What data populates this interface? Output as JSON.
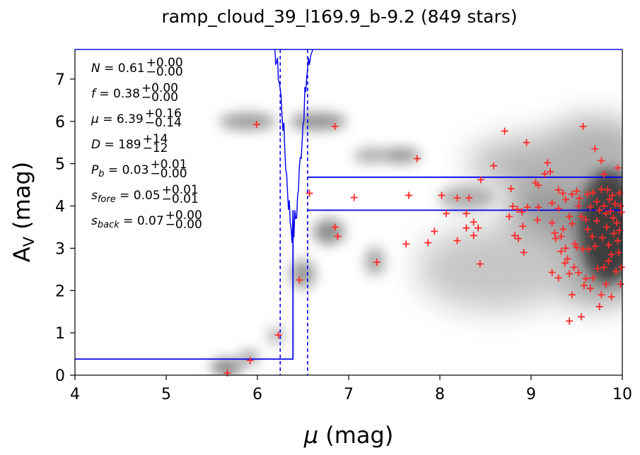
{
  "chart_data": {
    "type": "scatter",
    "title": "ramp_cloud_39_l169.9_b-9.2 (849 stars)",
    "xlabel_symbol": "μ",
    "xlabel_unit": " (mag)",
    "ylabel_main": "A",
    "ylabel_sub": "V",
    "ylabel_unit": " (mag)",
    "xlim": [
      4,
      10
    ],
    "ylim": [
      0,
      7.7
    ],
    "xticks": [
      4,
      5,
      6,
      7,
      8,
      9,
      10
    ],
    "yticks": [
      0,
      1,
      2,
      3,
      4,
      5,
      6,
      7
    ],
    "grid": false,
    "colors": {
      "points": "#ff2a2a",
      "model": "#0000ee",
      "density": "#555555"
    },
    "annotations": [
      {
        "sym": "N",
        "italic": true,
        "sub": "",
        "val": "0.61",
        "up": "+0.00",
        "lo": "−0.00"
      },
      {
        "sym": "f",
        "italic": true,
        "sub": "",
        "val": "0.38",
        "up": "+0.00",
        "lo": "−0.00"
      },
      {
        "sym": "μ",
        "italic": true,
        "sub": "",
        "val": "6.39",
        "up": "+0.16",
        "lo": "−0.14"
      },
      {
        "sym": "D",
        "italic": true,
        "sub": "",
        "val": "189",
        "up": "+14",
        "lo": "−12"
      },
      {
        "sym": "P",
        "italic": true,
        "sub": "b",
        "val": "0.03",
        "up": "+0.01",
        "lo": "−0.00"
      },
      {
        "sym": "s",
        "italic": true,
        "sub": "fore",
        "val": "0.05",
        "up": "+0.01",
        "lo": "−0.01"
      },
      {
        "sym": "s",
        "italic": true,
        "sub": "back",
        "val": "0.07",
        "up": "+0.00",
        "lo": "−0.00"
      }
    ],
    "model_fore_av": 0.38,
    "model_back_av_low": 3.9,
    "model_back_av_high": 4.68,
    "model_mu": 6.39,
    "mu_lower": 6.25,
    "mu_upper": 6.55,
    "points": [
      [
        5.67,
        0.05
      ],
      [
        5.92,
        0.35
      ],
      [
        6.23,
        0.95
      ],
      [
        6.46,
        2.25
      ],
      [
        5.99,
        5.93
      ],
      [
        6.85,
        5.88
      ],
      [
        6.57,
        4.3
      ],
      [
        6.85,
        3.5
      ],
      [
        6.88,
        3.28
      ],
      [
        7.06,
        4.2
      ],
      [
        7.31,
        2.67
      ],
      [
        7.63,
        3.1
      ],
      [
        7.66,
        4.25
      ],
      [
        7.75,
        5.12
      ],
      [
        7.87,
        3.13
      ],
      [
        7.94,
        3.4
      ],
      [
        8.02,
        4.25
      ],
      [
        8.07,
        3.82
      ],
      [
        8.19,
        3.18
      ],
      [
        8.19,
        4.19
      ],
      [
        8.29,
        3.82
      ],
      [
        8.29,
        3.48
      ],
      [
        8.32,
        4.19
      ],
      [
        8.37,
        3.3
      ],
      [
        8.37,
        3.62
      ],
      [
        8.42,
        3.48
      ],
      [
        8.44,
        2.63
      ],
      [
        8.45,
        4.62
      ],
      [
        8.59,
        4.95
      ],
      [
        8.71,
        5.77
      ],
      [
        8.76,
        3.75
      ],
      [
        8.78,
        4.41
      ],
      [
        8.8,
        3.99
      ],
      [
        8.82,
        3.3
      ],
      [
        8.85,
        3.92
      ],
      [
        8.86,
        3.23
      ],
      [
        8.9,
        3.86
      ],
      [
        8.91,
        3.52
      ],
      [
        8.92,
        2.9
      ],
      [
        8.95,
        5.5
      ],
      [
        8.96,
        3.97
      ],
      [
        9.05,
        4.55
      ],
      [
        9.07,
        3.67
      ],
      [
        9.08,
        4.49
      ],
      [
        9.08,
        3.97
      ],
      [
        9.15,
        4.76
      ],
      [
        9.18,
        5.02
      ],
      [
        9.21,
        4.81
      ],
      [
        9.23,
        4.07
      ],
      [
        9.23,
        3.6
      ],
      [
        9.23,
        2.43
      ],
      [
        9.26,
        3.36
      ],
      [
        9.27,
        3.23
      ],
      [
        9.3,
        3.94
      ],
      [
        9.3,
        2.3
      ],
      [
        9.3,
        4.38
      ],
      [
        9.33,
        3.28
      ],
      [
        9.33,
        2.93
      ],
      [
        9.35,
        3.45
      ],
      [
        9.35,
        4.3
      ],
      [
        9.37,
        2.65
      ],
      [
        9.38,
        4.15
      ],
      [
        9.38,
        3.0
      ],
      [
        9.4,
        2.75
      ],
      [
        9.42,
        1.28
      ],
      [
        9.42,
        2.4
      ],
      [
        9.42,
        3.75
      ],
      [
        9.45,
        4.28
      ],
      [
        9.45,
        3.58
      ],
      [
        9.45,
        1.9
      ],
      [
        9.47,
        2.55
      ],
      [
        9.48,
        3.1
      ],
      [
        9.5,
        4.35
      ],
      [
        9.5,
        3.02
      ],
      [
        9.52,
        2.42
      ],
      [
        9.52,
        4.0
      ],
      [
        9.53,
        4.18
      ],
      [
        9.55,
        1.38
      ],
      [
        9.55,
        3.75
      ],
      [
        9.57,
        5.88
      ],
      [
        9.57,
        2.98
      ],
      [
        9.58,
        2.12
      ],
      [
        9.6,
        3.68
      ],
      [
        9.6,
        2.28
      ],
      [
        9.62,
        4.28
      ],
      [
        9.62,
        3.45
      ],
      [
        9.63,
        2.98
      ],
      [
        9.65,
        2.05
      ],
      [
        9.65,
        3.98
      ],
      [
        9.67,
        3.28
      ],
      [
        9.68,
        4.32
      ],
      [
        9.68,
        2.3
      ],
      [
        9.7,
        5.35
      ],
      [
        9.7,
        3.05
      ],
      [
        9.72,
        4.1
      ],
      [
        9.72,
        3.65
      ],
      [
        9.73,
        2.52
      ],
      [
        9.75,
        1.62
      ],
      [
        9.75,
        3.9
      ],
      [
        9.77,
        5.07
      ],
      [
        9.77,
        4.39
      ],
      [
        9.77,
        1.9
      ],
      [
        9.78,
        3.25
      ],
      [
        9.8,
        2.55
      ],
      [
        9.8,
        4.0
      ],
      [
        9.8,
        4.75
      ],
      [
        9.82,
        3.82
      ],
      [
        9.82,
        2.15
      ],
      [
        9.83,
        3.5
      ],
      [
        9.84,
        4.38
      ],
      [
        9.85,
        2.7
      ],
      [
        9.85,
        3.08
      ],
      [
        9.86,
        4.15
      ],
      [
        9.87,
        3.88
      ],
      [
        9.88,
        1.85
      ],
      [
        9.88,
        2.85
      ],
      [
        9.89,
        4.25
      ],
      [
        9.9,
        3.72
      ],
      [
        9.91,
        3.35
      ],
      [
        9.92,
        4.05
      ],
      [
        9.93,
        2.45
      ],
      [
        9.94,
        3.6
      ],
      [
        9.95,
        4.9
      ],
      [
        9.95,
        3.18
      ],
      [
        9.96,
        2.9
      ],
      [
        9.97,
        4.3
      ],
      [
        9.97,
        3.42
      ],
      [
        9.98,
        2.15
      ],
      [
        9.98,
        4.0
      ],
      [
        9.99,
        3.85
      ],
      [
        9.99,
        2.55
      ]
    ]
  }
}
